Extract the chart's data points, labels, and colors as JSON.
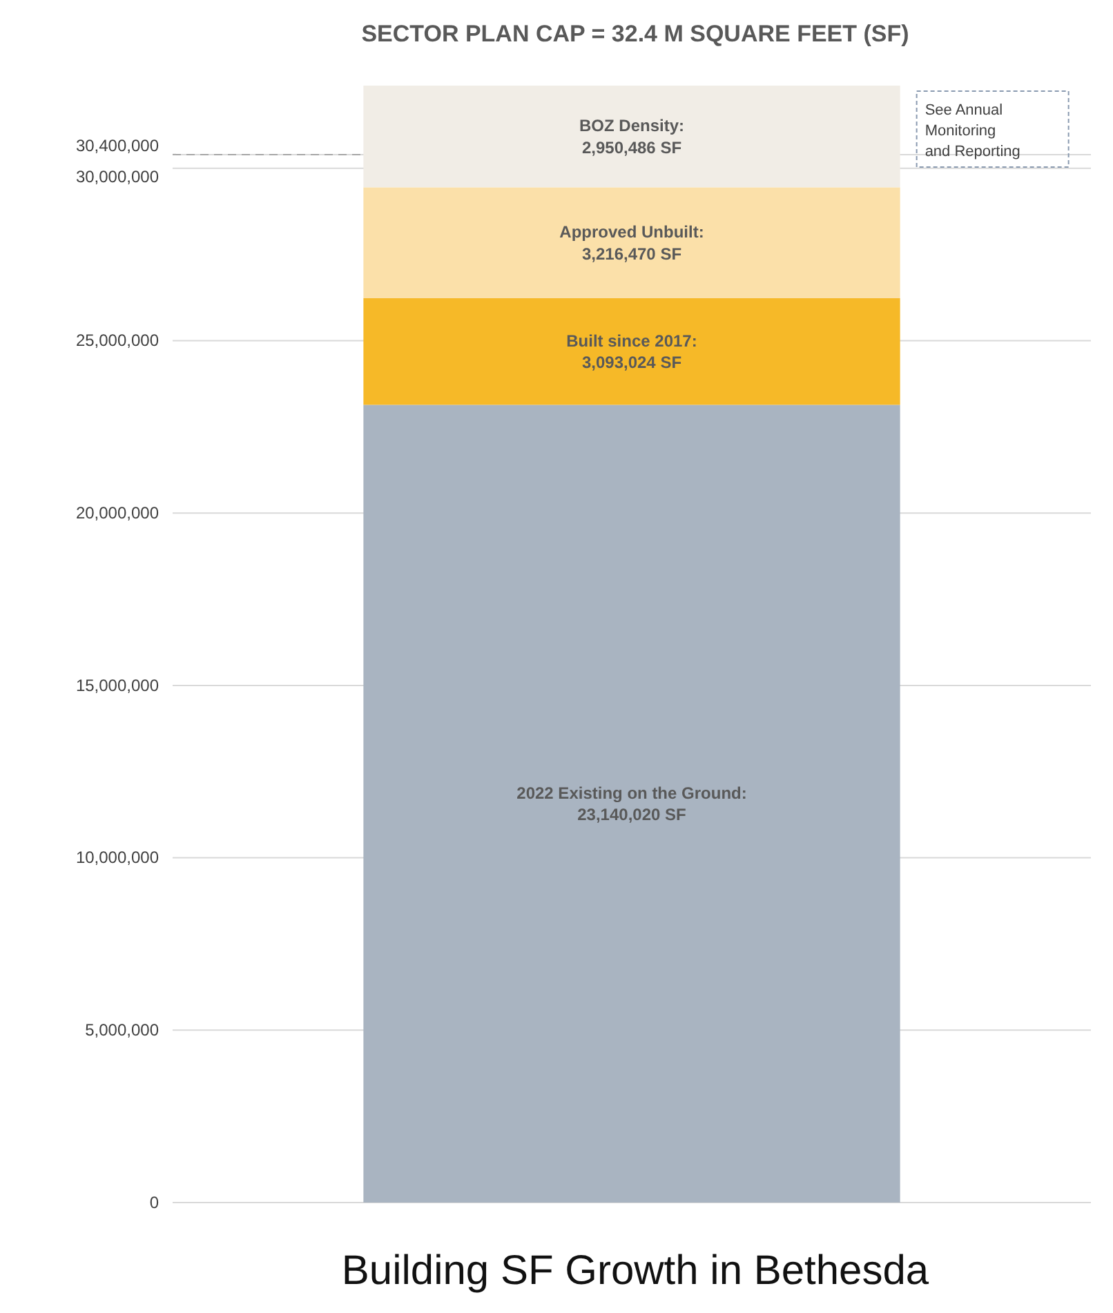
{
  "chart_data": {
    "type": "bar",
    "stacked": true,
    "title": "SECTOR PLAN CAP = 32.4 M SQUARE FEET (SF)",
    "subtitle": "Building SF Growth in Bethesda",
    "categories": [
      null
    ],
    "series": [
      {
        "name": "2022 Existing on the Ground:",
        "color": "#a9b4c1",
        "values": [
          23140020
        ],
        "value_labels": [
          "23,140,020 SF"
        ]
      },
      {
        "name": "Built since 2017:",
        "color": "#f6b928",
        "values": [
          3093024
        ],
        "value_labels": [
          "3,093,024 SF"
        ]
      },
      {
        "name": "Approved Unbuilt:",
        "color": "#fbe0a9",
        "values": [
          3216470
        ],
        "value_labels": [
          "3,216,470 SF"
        ]
      },
      {
        "name": "BOZ Density:",
        "color": "#f1ede6",
        "values": [
          2950486
        ],
        "value_labels": [
          "2,950,486 SF"
        ]
      }
    ],
    "ylim": [
      0,
      32400000
    ],
    "yticks": [
      {
        "value": 0,
        "label": "0"
      },
      {
        "value": 5000000,
        "label": "5,000,000"
      },
      {
        "value": 10000000,
        "label": "10,000,000"
      },
      {
        "value": 15000000,
        "label": "15,000,000"
      },
      {
        "value": 20000000,
        "label": "20,000,000"
      },
      {
        "value": 25000000,
        "label": "25,000,000"
      },
      {
        "value": 30000000,
        "label": "30,000,000"
      },
      {
        "value": 30400000,
        "label": "30,400,000"
      }
    ],
    "ref_lines": [
      {
        "axis": "y",
        "value": 30400000,
        "line_style": "dashed",
        "color": "#a6a6a6"
      }
    ],
    "annotations": [
      "See Annual Monitoring and Reporting"
    ],
    "grid": "y",
    "tick_labels": "y"
  }
}
